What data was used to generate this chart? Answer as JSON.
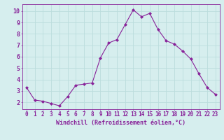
{
  "x": [
    0,
    1,
    2,
    3,
    4,
    5,
    6,
    7,
    8,
    9,
    10,
    11,
    12,
    13,
    14,
    15,
    16,
    17,
    18,
    19,
    20,
    21,
    22,
    23
  ],
  "y": [
    3.3,
    2.2,
    2.1,
    1.9,
    1.7,
    2.5,
    3.5,
    3.6,
    3.7,
    5.9,
    7.2,
    7.5,
    8.8,
    10.1,
    9.5,
    9.8,
    8.4,
    7.4,
    7.1,
    6.5,
    5.8,
    4.5,
    3.3,
    2.7
  ],
  "line_color": "#882299",
  "marker": "D",
  "marker_size": 2.0,
  "bg_color": "#d6eeee",
  "grid_color": "#bbdddd",
  "xlabel": "Windchill (Refroidissement éolien,°C)",
  "xlabel_color": "#882299",
  "tick_color": "#882299",
  "ylim": [
    1.4,
    10.6
  ],
  "xlim": [
    -0.5,
    23.5
  ],
  "yticks": [
    2,
    3,
    4,
    5,
    6,
    7,
    8,
    9,
    10
  ],
  "xticks": [
    0,
    1,
    2,
    3,
    4,
    5,
    6,
    7,
    8,
    9,
    10,
    11,
    12,
    13,
    14,
    15,
    16,
    17,
    18,
    19,
    20,
    21,
    22,
    23
  ],
  "tick_fontsize": 5.5,
  "xlabel_fontsize": 6.0
}
